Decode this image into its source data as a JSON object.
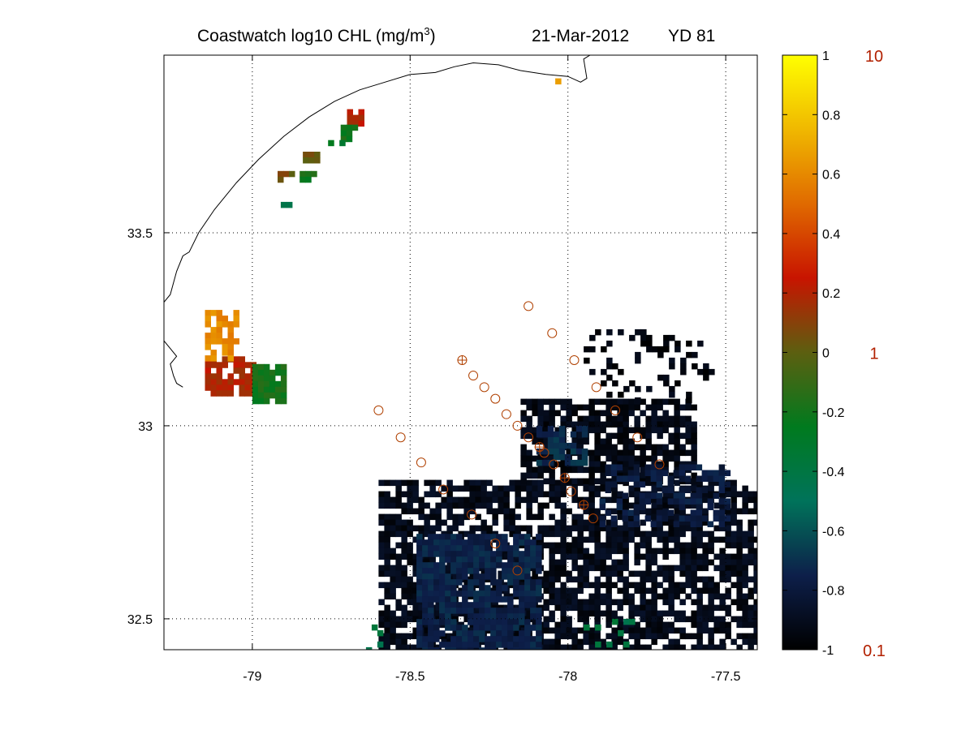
{
  "colors": {
    "background": "#ffffff",
    "axis": "#000000",
    "grid": "#000000",
    "coast": "#000000",
    "station_marker": "#b04000",
    "side_label": "#b22000",
    "colormap": [
      "#000000",
      "#0d1f4a",
      "#00735a",
      "#007a1e",
      "#5c5f10",
      "#c81400",
      "#e06a00",
      "#f0b800",
      "#ffff00"
    ]
  },
  "chart_data": {
    "type": "heatmap",
    "title": {
      "main": "Coastwatch  log10  CHL (mg/m",
      "superscript": "3",
      "close": ")",
      "date": "21-Mar-2012",
      "yearday": "YD 81"
    },
    "xlabel": "",
    "ylabel": "",
    "xlim": [
      -79.28,
      -77.4
    ],
    "ylim": [
      32.42,
      33.96
    ],
    "xticks": [
      -79,
      -78.5,
      -78,
      -77.5
    ],
    "xtick_labels": [
      "-79",
      "-78.5",
      "-78",
      "-77.5"
    ],
    "yticks": [
      32.5,
      33,
      33.5
    ],
    "ytick_labels": [
      "32.5",
      "33",
      "33.5"
    ],
    "grid": "dotted",
    "colorbar": {
      "range": [
        -1,
        1
      ],
      "ticks": [
        -1,
        -0.8,
        -0.6,
        -0.4,
        -0.2,
        0,
        0.2,
        0.4,
        0.6,
        0.8,
        1
      ],
      "tick_labels": [
        "-1",
        "-0.8",
        "-0.6",
        "-0.4",
        "-0.2",
        "0",
        "0.2",
        "0.4",
        "0.6",
        "0.8",
        "1"
      ],
      "side_labels": [
        {
          "value": 1,
          "text": "10"
        },
        {
          "value": 0,
          "text": "1"
        },
        {
          "value": -1,
          "text": "0.1"
        }
      ]
    },
    "coastline": [
      [
        -79.28,
        33.32
      ],
      [
        -79.26,
        33.34
      ],
      [
        -79.24,
        33.4
      ],
      [
        -79.22,
        33.44
      ],
      [
        -79.2,
        33.45
      ],
      [
        -79.17,
        33.5
      ],
      [
        -79.12,
        33.56
      ],
      [
        -79.05,
        33.63
      ],
      [
        -78.98,
        33.69
      ],
      [
        -78.9,
        33.75
      ],
      [
        -78.82,
        33.8
      ],
      [
        -78.74,
        33.84
      ],
      [
        -78.66,
        33.87
      ],
      [
        -78.58,
        33.89
      ],
      [
        -78.5,
        33.91
      ],
      [
        -78.42,
        33.915
      ],
      [
        -78.36,
        33.93
      ],
      [
        -78.3,
        33.94
      ],
      [
        -78.22,
        33.935
      ],
      [
        -78.15,
        33.92
      ],
      [
        -78.07,
        33.91
      ],
      [
        -78.0,
        33.905
      ],
      [
        -77.96,
        33.89
      ],
      [
        -77.94,
        33.9
      ],
      [
        -77.95,
        33.95
      ],
      [
        -77.93,
        33.96
      ]
    ],
    "coastline_inland": [
      [
        -79.28,
        33.22
      ],
      [
        -79.26,
        33.2
      ],
      [
        -79.24,
        33.18
      ],
      [
        -79.26,
        33.16
      ],
      [
        -79.25,
        33.13
      ],
      [
        -79.24,
        33.11
      ],
      [
        -79.22,
        33.1
      ]
    ],
    "stations": [
      {
        "lon": -78.125,
        "lat": 33.31,
        "marker": "o"
      },
      {
        "lon": -78.05,
        "lat": 33.24,
        "marker": "o"
      },
      {
        "lon": -77.98,
        "lat": 33.17,
        "marker": "o"
      },
      {
        "lon": -77.91,
        "lat": 33.1,
        "marker": "o"
      },
      {
        "lon": -77.85,
        "lat": 33.04,
        "marker": "o"
      },
      {
        "lon": -77.78,
        "lat": 32.97,
        "marker": "o"
      },
      {
        "lon": -77.71,
        "lat": 32.9,
        "marker": "o"
      },
      {
        "lon": -78.335,
        "lat": 33.17,
        "marker": "asterisk"
      },
      {
        "lon": -78.3,
        "lat": 33.13,
        "marker": "o"
      },
      {
        "lon": -78.265,
        "lat": 33.1,
        "marker": "o"
      },
      {
        "lon": -78.23,
        "lat": 33.07,
        "marker": "o"
      },
      {
        "lon": -78.195,
        "lat": 33.03,
        "marker": "o"
      },
      {
        "lon": -78.16,
        "lat": 33.0,
        "marker": "o"
      },
      {
        "lon": -78.125,
        "lat": 32.97,
        "marker": "o"
      },
      {
        "lon": -78.09,
        "lat": 32.945,
        "marker": "asterisk"
      },
      {
        "lon": -78.075,
        "lat": 32.93,
        "marker": "o"
      },
      {
        "lon": -78.045,
        "lat": 32.9,
        "marker": "o"
      },
      {
        "lon": -78.01,
        "lat": 32.865,
        "marker": "asterisk"
      },
      {
        "lon": -77.99,
        "lat": 32.83,
        "marker": "o"
      },
      {
        "lon": -77.95,
        "lat": 32.795,
        "marker": "asterisk"
      },
      {
        "lon": -77.92,
        "lat": 32.76,
        "marker": "o"
      },
      {
        "lon": -78.6,
        "lat": 33.04,
        "marker": "o"
      },
      {
        "lon": -78.53,
        "lat": 32.97,
        "marker": "o"
      },
      {
        "lon": -78.465,
        "lat": 32.905,
        "marker": "o"
      },
      {
        "lon": -78.395,
        "lat": 32.835,
        "marker": "o"
      },
      {
        "lon": -78.305,
        "lat": 32.77,
        "marker": "o"
      },
      {
        "lon": -78.23,
        "lat": 32.695,
        "marker": "o"
      },
      {
        "lon": -78.16,
        "lat": 32.625,
        "marker": "o"
      }
    ],
    "patches": [
      {
        "lon": [
          -78.6,
          -77.4
        ],
        "lat": [
          32.42,
          32.86
        ],
        "value": -0.92,
        "density": 0.72
      },
      {
        "lon": [
          -78.15,
          -77.6
        ],
        "lat": [
          32.86,
          33.07
        ],
        "value": -0.93,
        "density": 0.78
      },
      {
        "lon": [
          -77.95,
          -77.55
        ],
        "lat": [
          33.07,
          33.25
        ],
        "value": -0.95,
        "density": 0.22
      },
      {
        "lon": [
          -78.48,
          -78.1
        ],
        "lat": [
          32.42,
          32.72
        ],
        "value": -0.75,
        "density": 0.85
      },
      {
        "lon": [
          -77.9,
          -77.5
        ],
        "lat": [
          32.75,
          32.9
        ],
        "value": -0.78,
        "density": 0.5
      },
      {
        "lon": [
          -78.1,
          -77.95
        ],
        "lat": [
          32.9,
          33.0
        ],
        "value": -0.72,
        "density": 0.6
      },
      {
        "lon": [
          -79.15,
          -79.0
        ],
        "lat": [
          33.08,
          33.18
        ],
        "value": 0.2,
        "density": 0.85
      },
      {
        "lon": [
          -79.15,
          -79.05
        ],
        "lat": [
          33.18,
          33.3
        ],
        "value": 0.6,
        "density": 0.55
      },
      {
        "lon": [
          -79.0,
          -78.9
        ],
        "lat": [
          33.06,
          33.16
        ],
        "value": -0.2,
        "density": 0.85
      },
      {
        "lon": [
          -78.7,
          -78.65
        ],
        "lat": [
          33.78,
          33.82
        ],
        "value": 0.2,
        "density": 0.9
      },
      {
        "lon": [
          -78.72,
          -78.68
        ],
        "lat": [
          33.75,
          33.78
        ],
        "value": -0.2,
        "density": 0.8
      },
      {
        "lon": [
          -78.85,
          -78.8
        ],
        "lat": [
          33.64,
          33.66
        ],
        "value": -0.2,
        "density": 0.8
      },
      {
        "lon": [
          -78.92,
          -78.88
        ],
        "lat": [
          33.64,
          33.66
        ],
        "value": 0.05,
        "density": 0.8
      },
      {
        "lon": [
          -78.91,
          -78.88
        ],
        "lat": [
          33.57,
          33.58
        ],
        "value": -0.4,
        "density": 0.9
      },
      {
        "lon": [
          -78.84,
          -78.8
        ],
        "lat": [
          33.69,
          33.71
        ],
        "value": 0.05,
        "density": 0.8
      },
      {
        "lon": [
          -78.76,
          -78.72
        ],
        "lat": [
          33.73,
          33.74
        ],
        "value": -0.3,
        "density": 0.8
      },
      {
        "lon": [
          -78.04,
          -78.03
        ],
        "lat": [
          33.89,
          33.9
        ],
        "value": 0.7,
        "density": 1.0
      },
      {
        "lon": [
          -78.64,
          -78.6
        ],
        "lat": [
          32.42,
          32.5
        ],
        "value": -0.4,
        "density": 0.3
      },
      {
        "lon": [
          -77.95,
          -77.7
        ],
        "lat": [
          32.42,
          32.5
        ],
        "value": -0.4,
        "density": 0.12
      }
    ]
  }
}
